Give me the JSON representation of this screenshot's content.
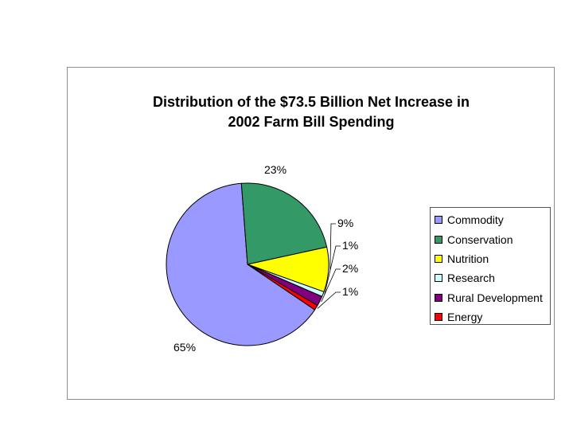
{
  "chart_data": {
    "type": "pie",
    "title_lines": [
      "Distribution of the $73.5 Billion Net Increase in",
      "2002 Farm Bill Spending"
    ],
    "categories": [
      "Commodity",
      "Conservation",
      "Nutrition",
      "Research",
      "Rural Development",
      "Energy"
    ],
    "values": [
      65,
      23,
      9,
      1,
      2,
      1
    ],
    "labels": [
      "65%",
      "23%",
      "9%",
      "1%",
      "2%",
      "1%"
    ],
    "colors": [
      "#9999ff",
      "#339966",
      "#ffff00",
      "#ccffff",
      "#800080",
      "#ff0000"
    ],
    "legend_position": "right"
  }
}
